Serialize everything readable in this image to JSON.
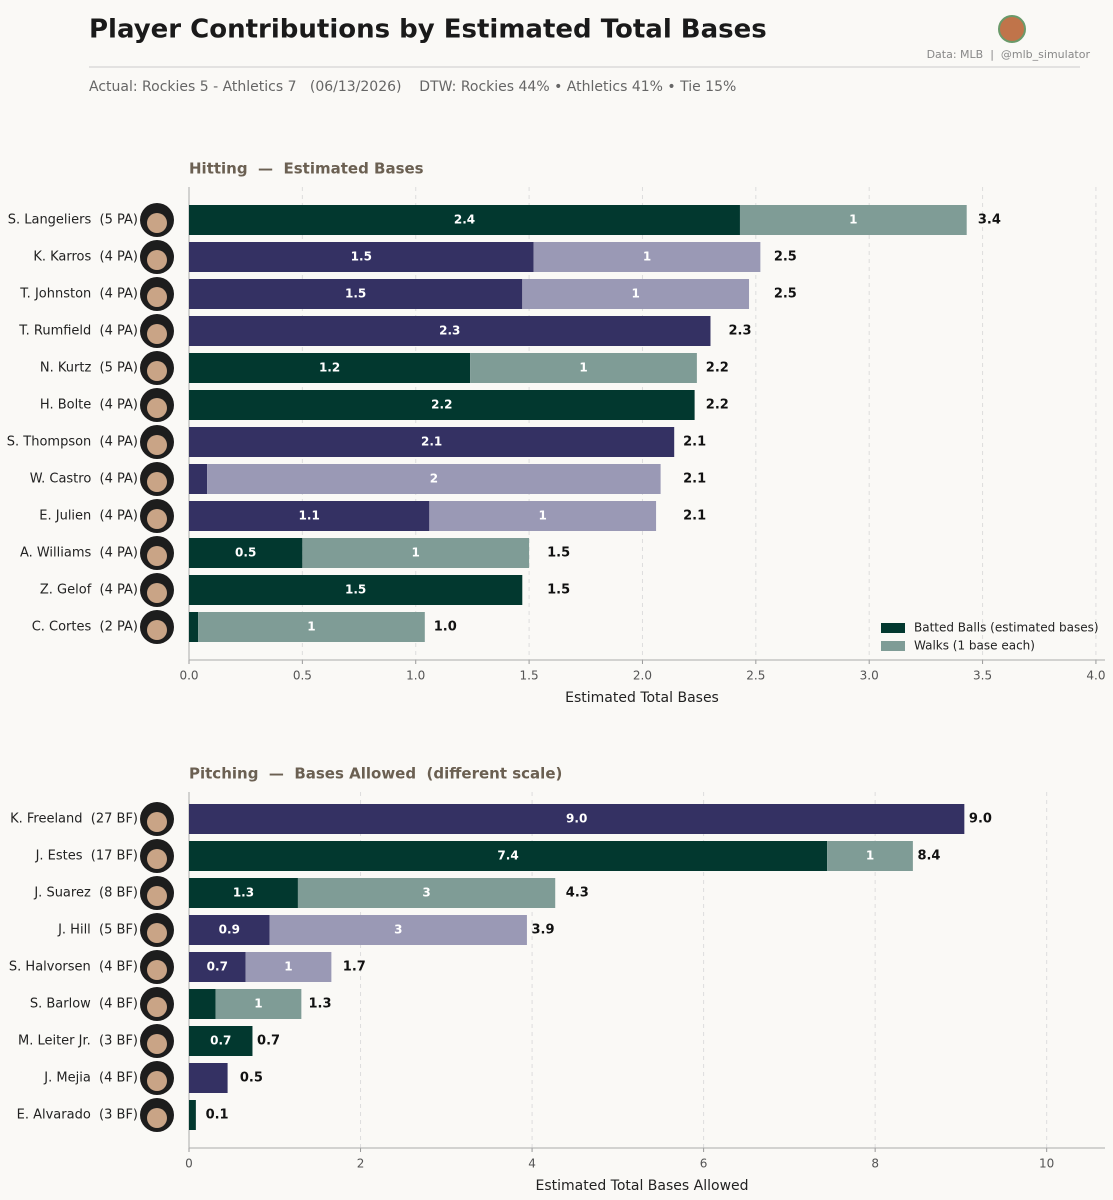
{
  "header": {
    "title": "Player Contributions by Estimated Total Bases",
    "source": "Data: MLB  |  @mlb_simulator",
    "subtitle": "Actual: Rockies 5 - Athletics 7   (06/13/2026)    DTW: Rockies 44% • Athletics 41% • Tie 15%"
  },
  "chart_data": [
    {
      "type": "bar",
      "orientation": "horizontal",
      "stacked": true,
      "title": "Hitting  —  Estimated Bases",
      "x_label": "Estimated Total Bases",
      "categories": [
        "S. Langeliers  (5 PA)",
        "K. Karros  (4 PA)",
        "T. Johnston  (4 PA)",
        "T. Rumfield  (4 PA)",
        "N. Kurtz  (5 PA)",
        "H. Bolte  (4 PA)",
        "S. Thompson  (4 PA)",
        "W. Castro  (4 PA)",
        "E. Julien  (4 PA)",
        "A. Williams  (4 PA)",
        "Z. Gelof  (4 PA)",
        "C. Cortes  (2 PA)"
      ],
      "series": [
        {
          "name": "Batted Balls (estimated bases)",
          "color": "#02382f",
          "values": [
            2.43,
            1.52,
            1.47,
            2.3,
            1.24,
            2.23,
            2.14,
            0.08,
            1.06,
            0.5,
            1.47,
            0.04
          ],
          "value_labels": [
            "2.4",
            "1.5",
            "1.5",
            "2.3",
            "1.2",
            "2.2",
            "2.1",
            null,
            "1.1",
            "0.5",
            "1.5",
            null
          ],
          "colors": [
            "#02382f",
            "#343163",
            "#343163",
            "#343163",
            "#02382f",
            "#02382f",
            "#343163",
            "#343163",
            "#343163",
            "#02382f",
            "#02382f",
            "#02382f"
          ]
        },
        {
          "name": "Walks (1 base each)",
          "color": "#7f9c96",
          "values": [
            1,
            1,
            1,
            0,
            1,
            0,
            0,
            2,
            1,
            1,
            0,
            1
          ],
          "value_labels": [
            "1",
            "1",
            "1",
            null,
            "1",
            null,
            null,
            "2",
            "1",
            "1",
            null,
            "1"
          ],
          "colors": [
            "#7f9c96",
            "#9a99b5",
            "#9a99b5",
            "#9a99b5",
            "#7f9c96",
            "#7f9c96",
            "#9a99b5",
            "#9a99b5",
            "#9a99b5",
            "#7f9c96",
            "#7f9c96",
            "#7f9c96"
          ]
        }
      ],
      "totals": [
        3.4,
        2.5,
        2.5,
        2.3,
        2.2,
        2.2,
        2.1,
        2.1,
        2.1,
        1.5,
        1.5,
        1.0
      ],
      "total_labels": [
        "3.4",
        "2.5",
        "2.5",
        "2.3",
        "2.2",
        "2.2",
        "2.1",
        "2.1",
        "2.1",
        "1.5",
        "1.5",
        "1.0"
      ],
      "xlim": [
        0,
        4.04
      ],
      "xticks": [
        {
          "value": 0,
          "label": "0.0"
        },
        {
          "value": 0.5,
          "label": "0.5"
        },
        {
          "value": 1,
          "label": "1.0"
        },
        {
          "value": 1.5,
          "label": "1.5"
        },
        {
          "value": 2,
          "label": "2.0"
        },
        {
          "value": 2.5,
          "label": "2.5"
        },
        {
          "value": 3,
          "label": "3.0"
        },
        {
          "value": 3.5,
          "label": "3.5"
        },
        {
          "value": 4,
          "label": "4.0"
        }
      ],
      "grid": true,
      "legend": "lower right"
    },
    {
      "type": "bar",
      "orientation": "horizontal",
      "stacked": true,
      "title": "Pitching  —  Bases Allowed  (different scale)",
      "x_label": "Estimated Total Bases Allowed",
      "categories": [
        "K. Freeland  (27 BF)",
        "J. Estes  (17 BF)",
        "J. Suarez  (8 BF)",
        "J. Hill  (5 BF)",
        "S. Halvorsen  (4 BF)",
        "S. Barlow  (4 BF)",
        "M. Leiter Jr.  (3 BF)",
        "J. Mejia  (4 BF)",
        "E. Alvarado  (3 BF)"
      ],
      "series": [
        {
          "values": [
            9.04,
            7.44,
            1.27,
            0.94,
            0.66,
            0.31,
            0.74,
            0.45,
            0.08
          ],
          "value_labels": [
            "9.0",
            "7.4",
            "1.3",
            "0.9",
            "0.7",
            null,
            "0.7",
            null,
            null
          ],
          "colors": [
            "#343163",
            "#02382f",
            "#02382f",
            "#343163",
            "#343163",
            "#02382f",
            "#02382f",
            "#343163",
            "#02382f"
          ]
        },
        {
          "values": [
            0,
            1,
            3,
            3,
            1,
            1,
            0,
            0,
            0
          ],
          "value_labels": [
            null,
            "1",
            "3",
            "3",
            "1",
            "1",
            null,
            null,
            null
          ],
          "colors": [
            "#9a99b5",
            "#7f9c96",
            "#7f9c96",
            "#9a99b5",
            "#9a99b5",
            "#7f9c96",
            "#7f9c96",
            "#9a99b5",
            "#7f9c96"
          ]
        }
      ],
      "totals": [
        9.0,
        8.4,
        4.3,
        3.9,
        1.7,
        1.3,
        0.7,
        0.5,
        0.1
      ],
      "total_labels": [
        "9.0",
        "8.4",
        "4.3",
        "3.9",
        "1.7",
        "1.3",
        "0.7",
        "0.5",
        "0.1"
      ],
      "xlim": [
        0,
        10.68
      ],
      "xticks": [
        0,
        2,
        4,
        6,
        8,
        10
      ],
      "grid": true
    }
  ]
}
